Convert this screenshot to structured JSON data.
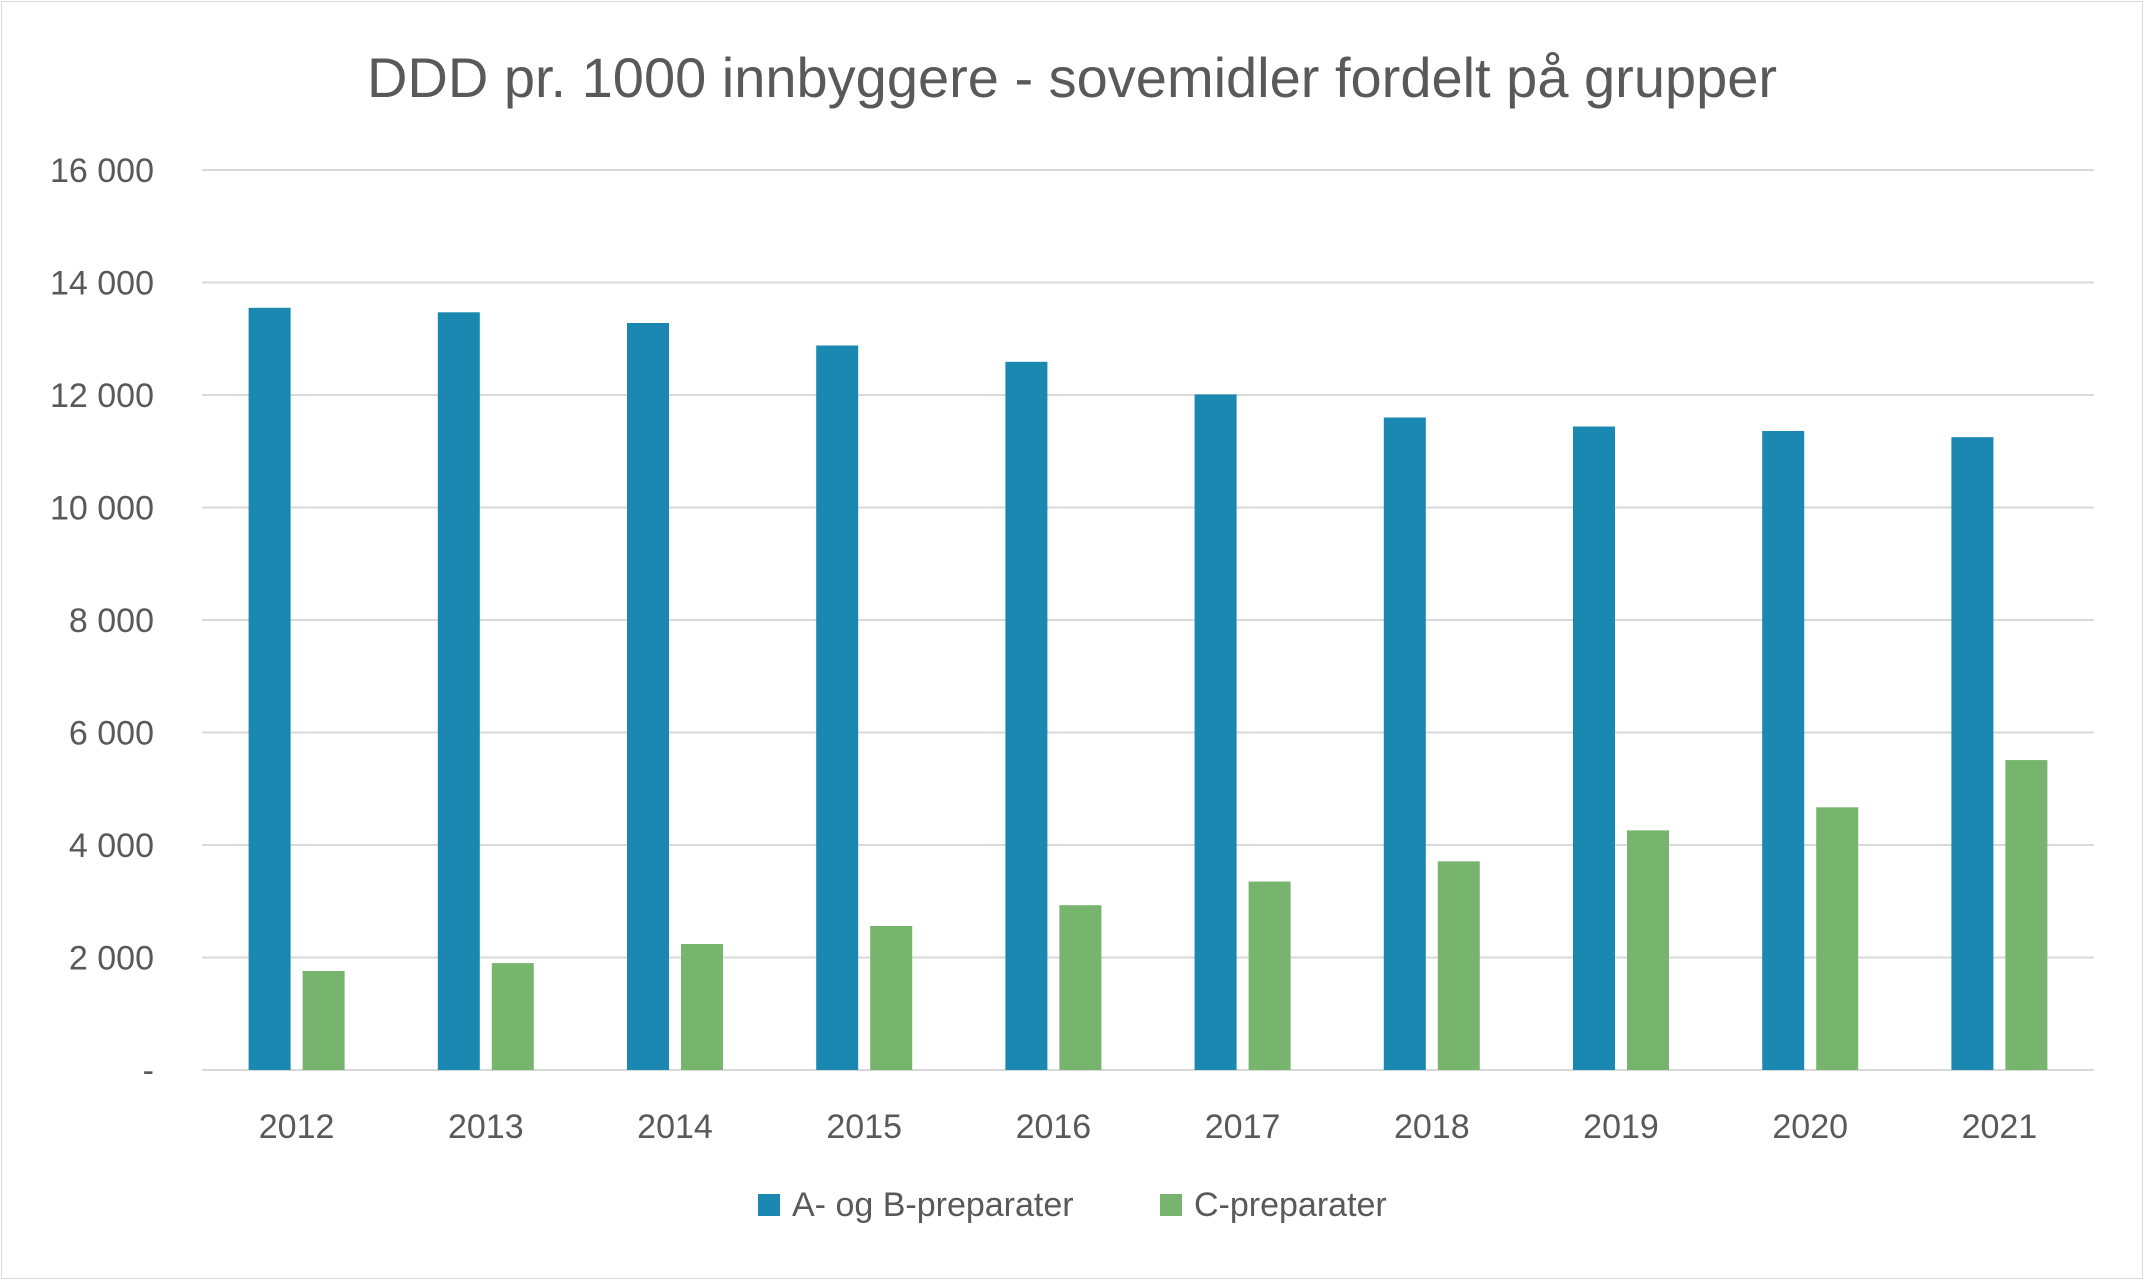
{
  "chart_data": {
    "type": "bar",
    "title": "DDD pr. 1000 innbyggere - sovemidler fordelt på grupper",
    "xlabel": "",
    "ylabel": "",
    "categories": [
      "2012",
      "2013",
      "2014",
      "2015",
      "2016",
      "2017",
      "2018",
      "2019",
      "2020",
      "2021"
    ],
    "series": [
      {
        "name": "A- og B-preparater",
        "color": "#1a88b0",
        "values": [
          13550,
          13470,
          13280,
          12880,
          12590,
          12010,
          11600,
          11440,
          11360,
          11250
        ]
      },
      {
        "name": "C-preparater",
        "color": "#77b56e",
        "values": [
          1760,
          1900,
          2240,
          2560,
          2930,
          3350,
          3710,
          4260,
          4670,
          5510
        ]
      }
    ],
    "ylim": [
      0,
      16000
    ],
    "yticks": [
      0,
      2000,
      4000,
      6000,
      8000,
      10000,
      12000,
      14000,
      16000
    ],
    "ytick_labels": [
      "-",
      "2 000",
      "4 000",
      "6 000",
      "8 000",
      "10 000",
      "12 000",
      "14 000",
      "16 000"
    ],
    "grid": true,
    "legend_position": "bottom",
    "colors": {
      "gridline": "#d9d9d9",
      "axis": "#d9d9d9",
      "text": "#595959"
    }
  }
}
